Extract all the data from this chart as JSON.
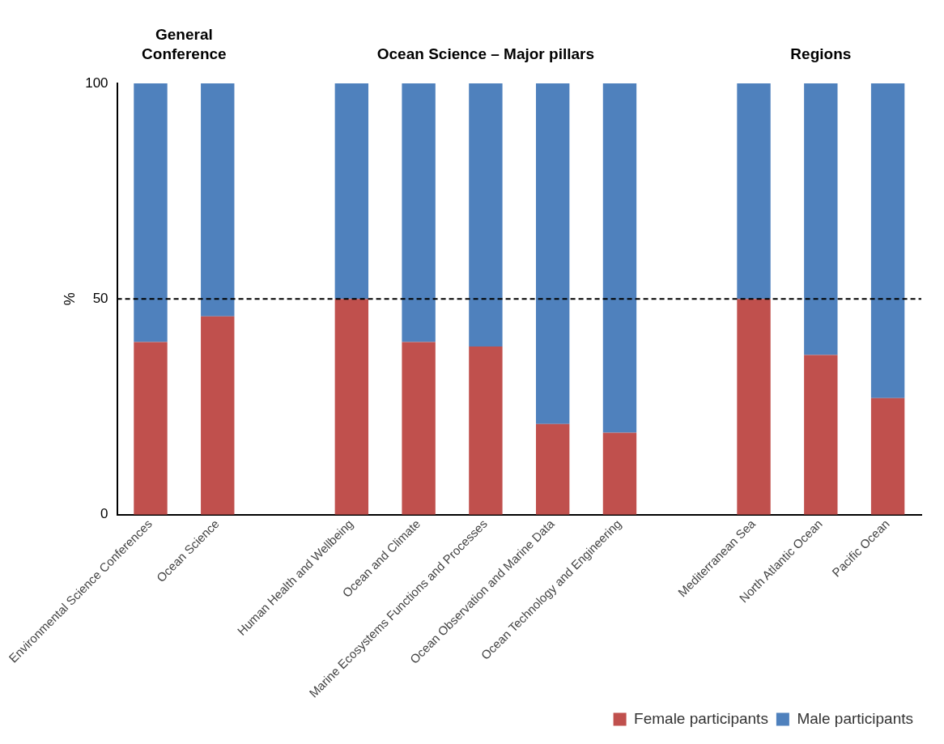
{
  "chart_data": {
    "type": "bar",
    "stacked": true,
    "ylabel": "%",
    "annotations": [
      "General Conference",
      "Ocean Science – Major pillars",
      "Regions"
    ],
    "categories": [
      "Environmental Science Conferences",
      "Ocean Science",
      null,
      "Human Health and Wellbeing",
      "Ocean and Climate",
      "Marine Ecosystems Functions and Processes",
      "Ocean Observation and Marine Data",
      "Ocean Technology and Engineering",
      null,
      "Mediterranean Sea",
      "North Atlantic Ocean",
      "Pacific Ocean"
    ],
    "series": [
      {
        "name": "Female participants",
        "color": "#c0504d",
        "values": [
          40,
          46,
          null,
          50,
          40,
          39,
          21,
          19,
          null,
          50,
          37,
          27
        ]
      },
      {
        "name": "Male participants",
        "color": "#4f81bd",
        "values": [
          60,
          54,
          null,
          50,
          60,
          61,
          79,
          81,
          null,
          50,
          63,
          73
        ]
      }
    ],
    "ylim": [
      0,
      100
    ],
    "yticks": [
      0,
      50,
      100
    ],
    "grid": false,
    "legend": "bottom right",
    "ref_lines": [
      {
        "axis": "y",
        "value": 50,
        "color": "#000000",
        "line_style": "dashed"
      }
    ]
  }
}
